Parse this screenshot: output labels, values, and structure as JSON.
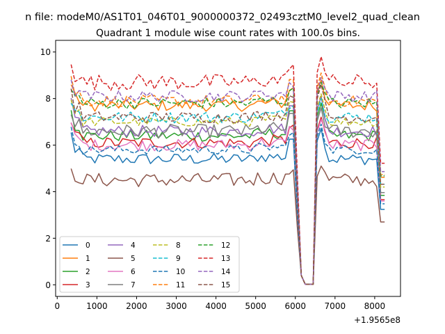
{
  "suptitle": "n file: modeM0/AS1T01_046T01_9000000372_02493cztM0_level2_quad_clean",
  "chart_data": {
    "type": "line",
    "title": "Quadrant 1 module wise count rates with 100.0s bins.",
    "xlabel": "",
    "ylabel": "",
    "x_offset_label": "+1.9565e8",
    "xlim": [
      -40,
      8650
    ],
    "ylim": [
      -0.5,
      10.5
    ],
    "xticks": [
      0,
      1000,
      2000,
      3000,
      4000,
      5000,
      6000,
      7000,
      8000
    ],
    "xtick_labels": [
      "0",
      "1000",
      "2000",
      "3000",
      "4000",
      "5000",
      "6000",
      "7000",
      "8000"
    ],
    "yticks": [
      0,
      2,
      4,
      6,
      8,
      10
    ],
    "ytick_labels": [
      "0",
      "2",
      "4",
      "6",
      "8",
      "10"
    ],
    "grid": false,
    "legend_placement": "lower-left",
    "legend_columns": 4,
    "x_start": 350,
    "x_step": 100,
    "x_end": 8250,
    "series": [
      {
        "name": "0",
        "color": "#1f77b4",
        "style": "solid",
        "level": 5.4,
        "noise": 0.25,
        "peak": 6.5
      },
      {
        "name": "1",
        "color": "#ff7f0e",
        "style": "solid",
        "level": 7.7,
        "noise": 0.25,
        "peak": 8.6
      },
      {
        "name": "2",
        "color": "#2ca02c",
        "style": "solid",
        "level": 6.4,
        "noise": 0.25,
        "peak": 7.6
      },
      {
        "name": "3",
        "color": "#d62728",
        "style": "solid",
        "level": 6.1,
        "noise": 0.25,
        "peak": 7.0
      },
      {
        "name": "4",
        "color": "#9467bd",
        "style": "solid",
        "level": 6.6,
        "noise": 0.25,
        "peak": 7.9
      },
      {
        "name": "5",
        "color": "#8c564b",
        "style": "solid",
        "level": 4.5,
        "noise": 0.3,
        "peak": 4.9
      },
      {
        "name": "6",
        "color": "#e377c2",
        "style": "solid",
        "level": 6.0,
        "noise": 0.25,
        "peak": 6.9
      },
      {
        "name": "7",
        "color": "#7f7f7f",
        "style": "solid",
        "level": 6.6,
        "noise": 0.3,
        "peak": 7.4
      },
      {
        "name": "8",
        "color": "#bcbd22",
        "style": "dashed",
        "level": 7.0,
        "noise": 0.2,
        "peak": 8.0
      },
      {
        "name": "9",
        "color": "#17becf",
        "style": "dashed",
        "level": 7.2,
        "noise": 0.25,
        "peak": 7.8
      },
      {
        "name": "10",
        "color": "#1f77b4",
        "style": "dashed",
        "level": 5.8,
        "noise": 0.2,
        "peak": 6.7
      },
      {
        "name": "11",
        "color": "#ff7f0e",
        "style": "dashed",
        "level": 7.9,
        "noise": 0.25,
        "peak": 8.9
      },
      {
        "name": "12",
        "color": "#2ca02c",
        "style": "dashed",
        "level": 7.8,
        "noise": 0.25,
        "peak": 8.5
      },
      {
        "name": "13",
        "color": "#d62728",
        "style": "dashed",
        "level": 8.7,
        "noise": 0.35,
        "peak": 9.6
      },
      {
        "name": "14",
        "color": "#9467bd",
        "style": "dashed",
        "level": 8.1,
        "noise": 0.25,
        "peak": 8.7
      },
      {
        "name": "15",
        "color": "#8c564b",
        "style": "dashed",
        "level": 7.2,
        "noise": 0.25,
        "peak": 8.4
      }
    ]
  }
}
